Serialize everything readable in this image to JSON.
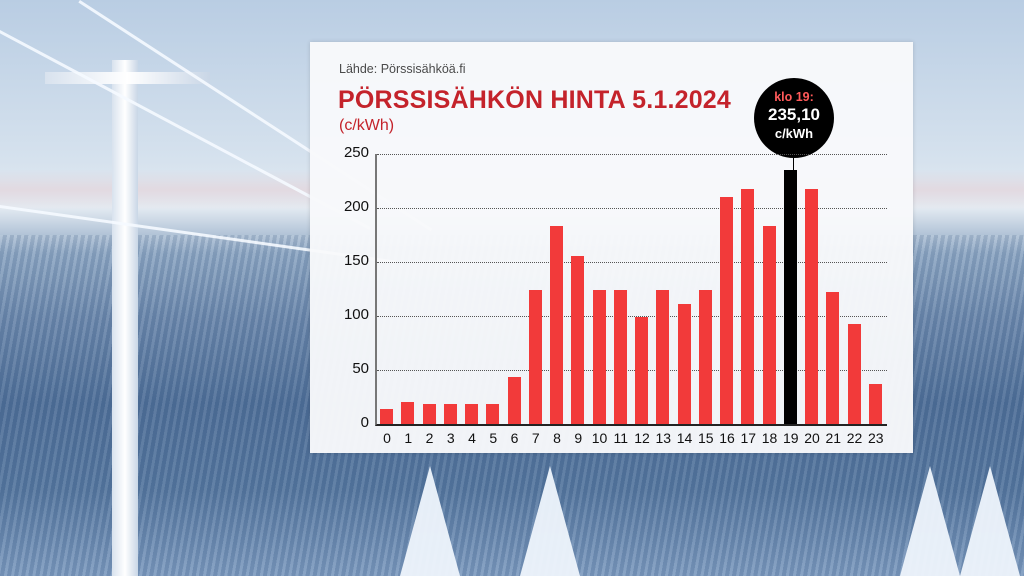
{
  "header": {
    "source": "Lähde: Pörssisähköä.fi",
    "title": "PÖRSSISÄHKÖN HINTA 5.1.2024",
    "unit": "(c/kWh)"
  },
  "callout": {
    "label": "klo 19:",
    "value": "235,10",
    "unit": "c/kWh"
  },
  "colors": {
    "bar": "#f23a3a",
    "highlight_bar": "#000000",
    "title": "#c4232b"
  },
  "y_ticks": [
    "250",
    "200",
    "150",
    "100",
    "50",
    "0"
  ],
  "x_ticks": [
    "0",
    "1",
    "2",
    "3",
    "4",
    "5",
    "6",
    "7",
    "8",
    "9",
    "10",
    "11",
    "12",
    "13",
    "14",
    "15",
    "16",
    "17",
    "18",
    "19",
    "20",
    "21",
    "22",
    "23"
  ],
  "chart_data": {
    "type": "bar",
    "title": "PÖRSSISÄHKÖN HINTA 5.1.2024",
    "subtitle": "(c/kWh)",
    "source": "Lähde: Pörssisähköä.fi",
    "xlabel": "",
    "ylabel": "c/kWh",
    "ylim": [
      0,
      250
    ],
    "yticks": [
      0,
      50,
      100,
      150,
      200,
      250
    ],
    "grid": true,
    "categories": [
      "0",
      "1",
      "2",
      "3",
      "4",
      "5",
      "6",
      "7",
      "8",
      "9",
      "10",
      "11",
      "12",
      "13",
      "14",
      "15",
      "16",
      "17",
      "18",
      "19",
      "20",
      "21",
      "22",
      "23"
    ],
    "values": [
      13.6,
      20.4,
      18.3,
      18.3,
      18.3,
      18.3,
      43.3,
      123.8,
      183.5,
      155.4,
      123.8,
      123.8,
      99.0,
      123.8,
      111.4,
      123.8,
      210.0,
      218.0,
      183.2,
      235.1,
      217.7,
      122.6,
      92.8,
      36.8
    ],
    "highlight": {
      "category": "19",
      "value": 235.1,
      "annotation": "klo 19: 235,10 c/kWh"
    }
  }
}
